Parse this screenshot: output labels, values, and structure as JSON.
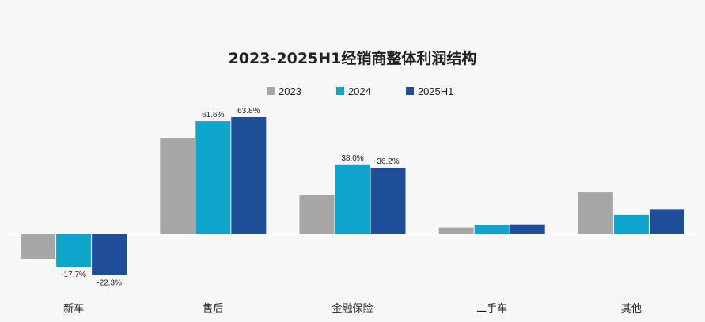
{
  "chart_data": {
    "type": "bar",
    "title": "2023-2025H1经销商整体利润结构",
    "categories": [
      "新车",
      "售后",
      "金融保险",
      "二手车",
      "其他"
    ],
    "series": [
      {
        "name": "2023",
        "color": "#a6a6a6",
        "values": [
          -13.5,
          52.3,
          21.3,
          3.6,
          22.8
        ],
        "labels": [
          null,
          null,
          null,
          null,
          null
        ]
      },
      {
        "name": "2024",
        "color": "#0ea5cc",
        "values": [
          -17.7,
          61.6,
          38.0,
          5.1,
          10.4
        ],
        "labels": [
          "-17.7%",
          "61.6%",
          "38.0%",
          null,
          null
        ]
      },
      {
        "name": "2025H1",
        "color": "#1f4e99",
        "values": [
          -22.3,
          63.8,
          36.2,
          5.3,
          13.6
        ],
        "labels": [
          "-22.3%",
          "63.8%",
          "36.2%",
          null,
          null
        ]
      }
    ],
    "ylim": [
      -30,
      80
    ],
    "grid": false,
    "legend_position": "top-center",
    "xlabel": "",
    "ylabel": ""
  }
}
